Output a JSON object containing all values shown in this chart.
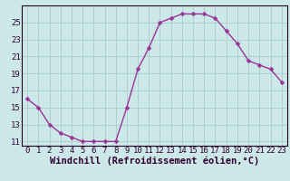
{
  "hours": [
    0,
    1,
    2,
    3,
    4,
    5,
    6,
    7,
    8,
    9,
    10,
    11,
    12,
    13,
    14,
    15,
    16,
    17,
    18,
    19,
    20,
    23
  ],
  "all_hours": [
    0,
    1,
    2,
    3,
    4,
    5,
    6,
    7,
    8,
    9,
    10,
    11,
    12,
    13,
    14,
    15,
    16,
    17,
    18,
    19,
    20,
    21,
    22,
    23
  ],
  "values": [
    16.0,
    15.0,
    13.0,
    12.0,
    11.5,
    11.0,
    11.0,
    11.0,
    11.0,
    15.0,
    19.5,
    22.0,
    25.0,
    25.5,
    26.0,
    26.0,
    26.0,
    25.5,
    24.0,
    22.5,
    20.5,
    20.0,
    19.5,
    18.0
  ],
  "line_color": "#993399",
  "marker_color": "#993399",
  "bg_color": "#cce8e8",
  "grid_color": "#aacccc",
  "xlabel": "Windchill (Refroidissement éolien,°C)",
  "xlim": [
    -0.5,
    23.5
  ],
  "ylim": [
    10.5,
    27.0
  ],
  "yticks": [
    11,
    13,
    15,
    17,
    19,
    21,
    23,
    25
  ],
  "xtick_labels": [
    "0",
    "1",
    "2",
    "3",
    "4",
    "5",
    "6",
    "7",
    "8",
    "9",
    "10",
    "11",
    "12",
    "13",
    "14",
    "15",
    "16",
    "17",
    "18",
    "19",
    "20",
    "21",
    "22",
    "23"
  ],
  "tick_fontsize": 6.5,
  "xlabel_fontsize": 7.5,
  "marker_size": 2.5,
  "line_width": 1.0
}
